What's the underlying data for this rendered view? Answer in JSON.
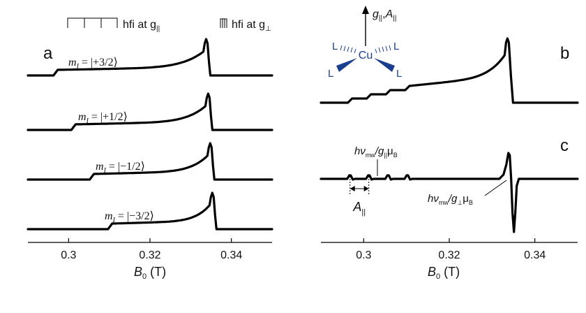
{
  "chart_data": [
    {
      "type": "line",
      "panel_label": "a",
      "xlabel": "B",
      "xlabel_sub": "0",
      "xlabel_unit": " (T)",
      "xlim": [
        0.29,
        0.35
      ],
      "xticks": [
        0.3,
        0.32,
        0.34
      ],
      "xtick_labels": [
        "0.3",
        "0.32",
        "0.34"
      ],
      "legend": {
        "parallel_label": "hfi at g",
        "parallel_sub": "||",
        "perp_label": "hfi at g",
        "perp_sub": "⊥"
      },
      "series": [
        {
          "name": "m_I = |+3/2⟩",
          "label_prefix": "m",
          "label_sub": "I",
          "label_value": " = |+3/2⟩",
          "step_B": 0.2968,
          "peak_B": 0.3338
        },
        {
          "name": "m_I = |+1/2⟩",
          "label_prefix": "m",
          "label_sub": "I",
          "label_value": " = |+1/2⟩",
          "step_B": 0.3012,
          "peak_B": 0.3343
        },
        {
          "name": "m_I = |−1/2⟩",
          "label_prefix": "m",
          "label_sub": "I",
          "label_value": " = |−1/2⟩",
          "step_B": 0.3057,
          "peak_B": 0.3348
        },
        {
          "name": "m_I = |−3/2⟩",
          "label_prefix": "m",
          "label_sub": "I",
          "label_value": " = |−3/2⟩",
          "step_B": 0.3102,
          "peak_B": 0.3353
        }
      ]
    },
    {
      "type": "line",
      "panel_label": "b",
      "xlim": [
        0.29,
        0.35
      ],
      "step_B": [
        0.2968,
        0.3012,
        0.3057,
        0.3102
      ],
      "peak_B": 0.3336
    },
    {
      "type": "line",
      "panel_label": "c",
      "xlabel": "B",
      "xlabel_sub": "0",
      "xlabel_unit": " (T)",
      "xlim": [
        0.29,
        0.35
      ],
      "xticks": [
        0.3,
        0.32,
        0.34
      ],
      "xtick_labels": [
        "0.3",
        "0.32",
        "0.34"
      ],
      "bump_B": [
        0.2968,
        0.3012,
        0.3057,
        0.3102
      ],
      "derivative_center_B": 0.3343,
      "annotations": {
        "parallel": {
          "h": "hν",
          "mw_sub": "mw",
          "slash": "/g",
          "g_sub": "||",
          "mu": "μ",
          "mu_sub": "B"
        },
        "perp": {
          "h": "hν",
          "mw_sub": "mw",
          "slash": "/g",
          "g_sub": "⊥",
          "mu": "μ",
          "mu_sub": "B"
        },
        "a_parallel": {
          "symbol": "A",
          "sub": "||"
        }
      }
    }
  ],
  "inset": {
    "axis_label_g": "g",
    "axis_sub_g": "||",
    "axis_label_a": "A",
    "axis_sub_a": "||",
    "center": "Cu",
    "ligand": "L",
    "ligand_color": "#1b3f8f"
  }
}
